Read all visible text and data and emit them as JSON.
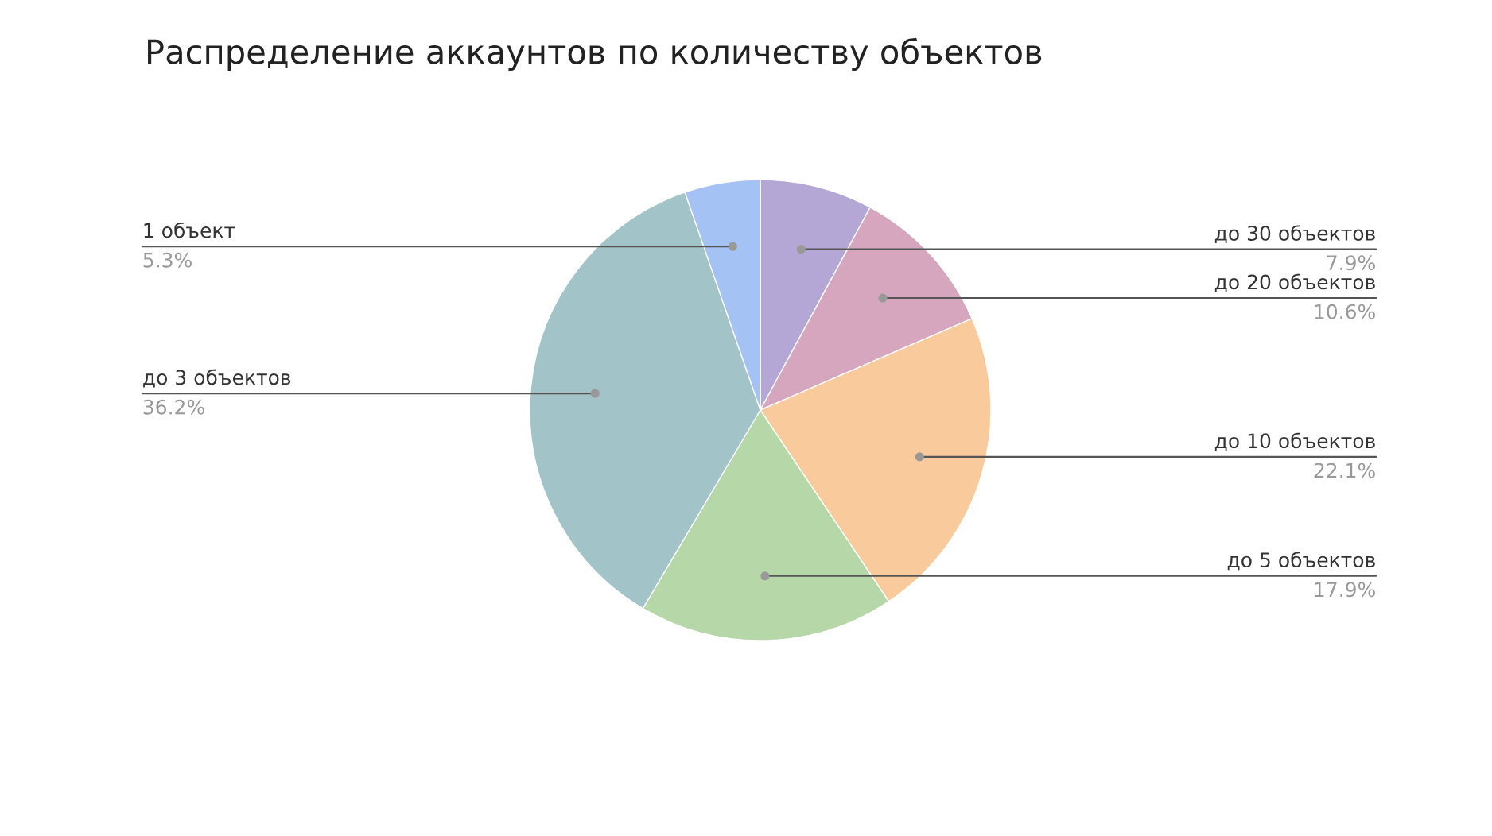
{
  "chart_data": {
    "type": "pie",
    "title": "Распределение аккаунтов по количеству объектов",
    "categories": [
      "до 30 объектов",
      "до 20 объектов",
      "до 10 объектов",
      "до 5 объектов",
      "до 3 объектов",
      "1 объект"
    ],
    "values": [
      7.9,
      10.6,
      22.1,
      17.9,
      36.2,
      5.3
    ],
    "value_labels": [
      "7.9%",
      "10.6%",
      "22.1%",
      "17.9%",
      "36.2%",
      "5.3%"
    ],
    "colors": [
      "#b4a7d6",
      "#d5a6bd",
      "#f9cb9c",
      "#b6d7a8",
      "#a2c4c9",
      "#a4c2f4"
    ]
  }
}
